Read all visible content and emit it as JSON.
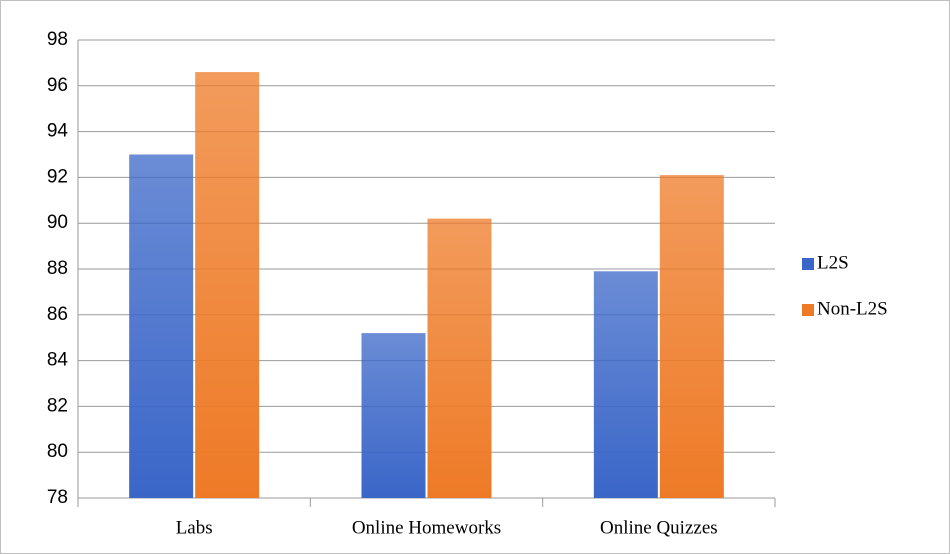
{
  "chart_data": {
    "type": "bar",
    "categories": [
      "Labs",
      "Online Homeworks",
      "Online Quizzes"
    ],
    "series": [
      {
        "name": "L2S",
        "color": "#3a66c8",
        "values": [
          93,
          85.2,
          87.9
        ]
      },
      {
        "name": "Non-L2S",
        "color": "#ee7a26",
        "values": [
          96.6,
          90.2,
          92.1
        ]
      }
    ],
    "ylim": [
      78,
      98
    ],
    "yticks": [
      78,
      80,
      82,
      84,
      86,
      88,
      90,
      92,
      94,
      96,
      98
    ],
    "grid": true,
    "legend": "right"
  }
}
